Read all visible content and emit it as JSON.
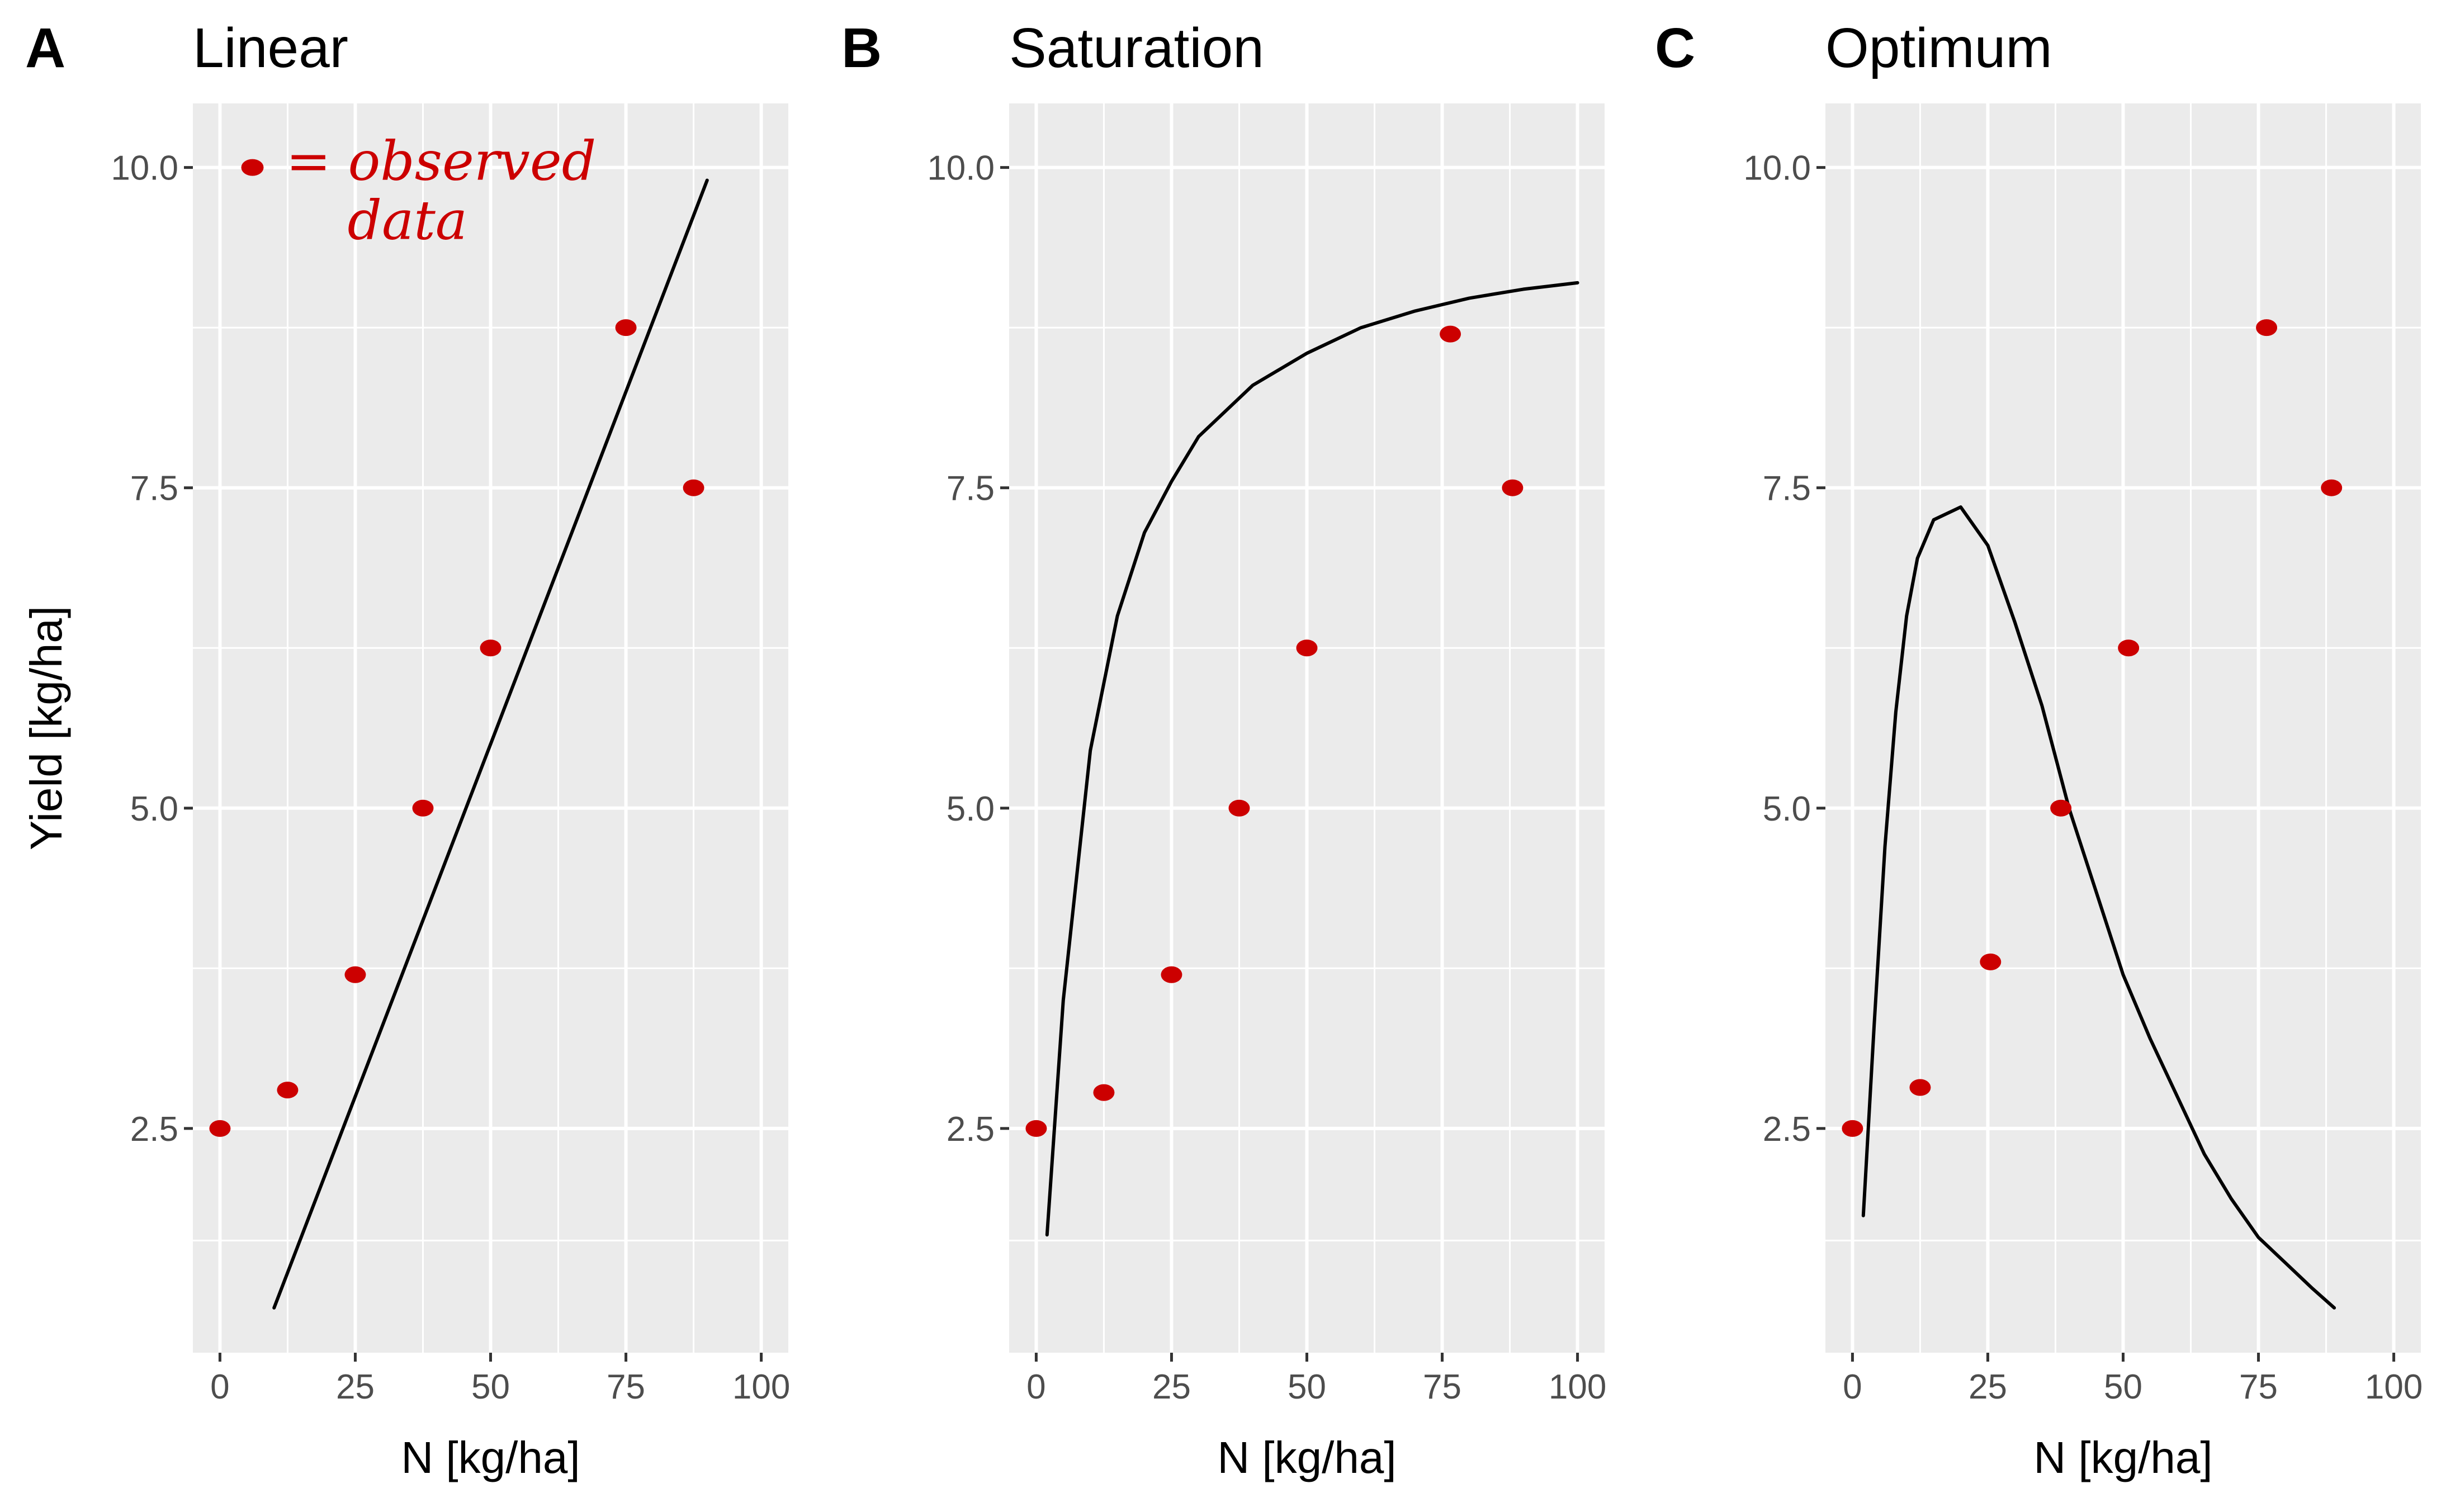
{
  "chart_data": [
    {
      "type": "line",
      "panel": "A",
      "title": "Linear",
      "xlabel": "N [kg/ha]",
      "ylabel": "Yield [kg/ha]",
      "xlim": [
        -5,
        105
      ],
      "ylim": [
        0.75,
        10.5
      ],
      "xticks": [
        "0",
        "25",
        "50",
        "75",
        "100"
      ],
      "yticks": [
        "2.5",
        "5.0",
        "7.5",
        "10.0"
      ],
      "grid": true,
      "model": "linear",
      "model_points": [
        [
          10,
          1.1
        ],
        [
          90,
          9.9
        ]
      ],
      "observed": [
        [
          0,
          2.5
        ],
        [
          12.5,
          2.8
        ],
        [
          25,
          3.7
        ],
        [
          37.5,
          5.0
        ],
        [
          50,
          6.25
        ],
        [
          75,
          8.75
        ],
        [
          87.5,
          7.5
        ]
      ],
      "annotation": {
        "line1": "= observed",
        "line2": "data",
        "marker_point": [
          6,
          10.0
        ]
      }
    },
    {
      "type": "line",
      "panel": "B",
      "title": "Saturation",
      "xlabel": "N [kg/ha]",
      "ylabel": "",
      "xlim": [
        -5,
        105
      ],
      "ylim": [
        0.75,
        10.5
      ],
      "xticks": [
        "0",
        "25",
        "50",
        "75",
        "100"
      ],
      "yticks": [
        "2.5",
        "5.0",
        "7.5",
        "10.0"
      ],
      "grid": true,
      "model": "saturation",
      "model_points": [
        [
          2,
          1.67
        ],
        [
          5,
          3.5
        ],
        [
          10,
          5.45
        ],
        [
          15,
          6.5
        ],
        [
          20,
          7.15
        ],
        [
          25,
          7.55
        ],
        [
          30,
          7.9
        ],
        [
          40,
          8.3
        ],
        [
          50,
          8.55
        ],
        [
          60,
          8.75
        ],
        [
          70,
          8.88
        ],
        [
          80,
          8.98
        ],
        [
          90,
          9.05
        ],
        [
          100,
          9.1
        ]
      ],
      "observed": [
        [
          0,
          2.5
        ],
        [
          12.5,
          2.78
        ],
        [
          25,
          3.7
        ],
        [
          37.5,
          5.0
        ],
        [
          50,
          6.25
        ],
        [
          76.5,
          8.7
        ],
        [
          88,
          7.5
        ]
      ]
    },
    {
      "type": "line",
      "panel": "C",
      "title": "Optimum",
      "xlabel": "N [kg/ha]",
      "ylabel": "",
      "xlim": [
        -5,
        105
      ],
      "ylim": [
        0.75,
        10.5
      ],
      "xticks": [
        "0",
        "25",
        "50",
        "75",
        "100"
      ],
      "yticks": [
        "2.5",
        "5.0",
        "7.5",
        "10.0"
      ],
      "grid": true,
      "model": "optimum",
      "model_points": [
        [
          2,
          1.82
        ],
        [
          4,
          3.3
        ],
        [
          6,
          4.7
        ],
        [
          8,
          5.75
        ],
        [
          10,
          6.5
        ],
        [
          12,
          6.95
        ],
        [
          15,
          7.25
        ],
        [
          20,
          7.35
        ],
        [
          25,
          7.05
        ],
        [
          30,
          6.45
        ],
        [
          35,
          5.8
        ],
        [
          40,
          5.0
        ],
        [
          45,
          4.35
        ],
        [
          50,
          3.7
        ],
        [
          55,
          3.2
        ],
        [
          60,
          2.75
        ],
        [
          65,
          2.3
        ],
        [
          70,
          1.95
        ],
        [
          75,
          1.65
        ],
        [
          80,
          1.45
        ],
        [
          85,
          1.25
        ],
        [
          89,
          1.1
        ]
      ],
      "observed": [
        [
          0,
          2.5
        ],
        [
          12.5,
          2.82
        ],
        [
          25.5,
          3.8
        ],
        [
          38.5,
          5.0
        ],
        [
          51,
          6.25
        ],
        [
          76.5,
          8.75
        ],
        [
          88.5,
          7.5
        ]
      ]
    }
  ],
  "colors": {
    "panel_background": "#ebebeb",
    "grid": "#ffffff",
    "model_line": "#000000",
    "observed_points": "#cc0000"
  }
}
